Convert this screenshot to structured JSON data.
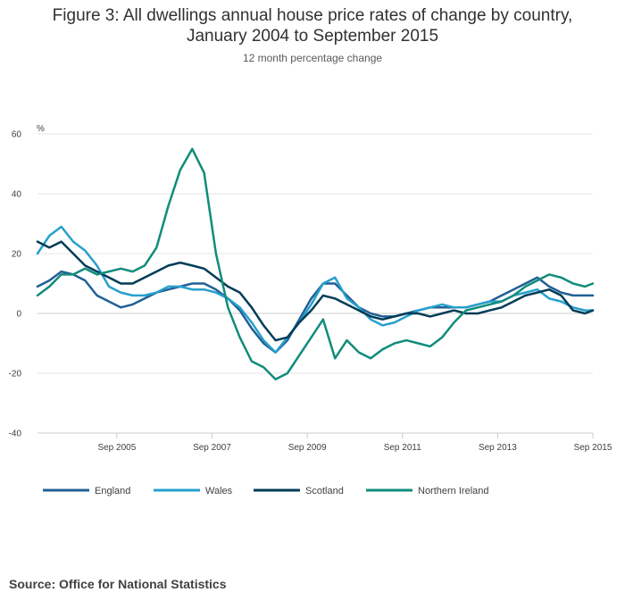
{
  "title_line1": "Figure 3: All dwellings annual house price rates of change by country,",
  "title_line2": "January 2004 to September 2015",
  "subtitle": "12 month percentage change",
  "source": "Source: Office for National Statistics",
  "chart_data": {
    "type": "line",
    "ylabel": "%",
    "ylim": [
      -40,
      60
    ],
    "yticks": [
      -40,
      -20,
      0,
      20,
      40,
      60
    ],
    "xlim": [
      "2004-01",
      "2015-09"
    ],
    "xtick_labels": [
      "Sep 2005",
      "Sep 2007",
      "Sep 2009",
      "Sep 2011",
      "Sep 2013",
      "Sep 2015"
    ],
    "xtick_dates": [
      "2005-09",
      "2007-09",
      "2009-09",
      "2011-09",
      "2013-09",
      "2015-09"
    ],
    "grid": "horizontal",
    "legend_position": "bottom",
    "series": [
      {
        "name": "England",
        "color": "#206095",
        "points": [
          [
            "2004-01",
            9
          ],
          [
            "2004-04",
            11
          ],
          [
            "2004-07",
            14
          ],
          [
            "2004-10",
            13
          ],
          [
            "2005-01",
            11
          ],
          [
            "2005-04",
            6
          ],
          [
            "2005-07",
            4
          ],
          [
            "2005-10",
            2
          ],
          [
            "2006-01",
            3
          ],
          [
            "2006-04",
            5
          ],
          [
            "2006-07",
            7
          ],
          [
            "2006-10",
            8
          ],
          [
            "2007-01",
            9
          ],
          [
            "2007-04",
            10
          ],
          [
            "2007-07",
            10
          ],
          [
            "2007-10",
            8
          ],
          [
            "2008-01",
            5
          ],
          [
            "2008-04",
            1
          ],
          [
            "2008-07",
            -5
          ],
          [
            "2008-10",
            -10
          ],
          [
            "2009-01",
            -13
          ],
          [
            "2009-04",
            -9
          ],
          [
            "2009-07",
            -2
          ],
          [
            "2009-10",
            5
          ],
          [
            "2010-01",
            10
          ],
          [
            "2010-04",
            10
          ],
          [
            "2010-07",
            6
          ],
          [
            "2010-10",
            2
          ],
          [
            "2011-01",
            0
          ],
          [
            "2011-04",
            -1
          ],
          [
            "2011-07",
            -1
          ],
          [
            "2011-10",
            0
          ],
          [
            "2012-01",
            1
          ],
          [
            "2012-04",
            2
          ],
          [
            "2012-07",
            2
          ],
          [
            "2012-10",
            2
          ],
          [
            "2013-01",
            2
          ],
          [
            "2013-04",
            3
          ],
          [
            "2013-07",
            4
          ],
          [
            "2013-10",
            6
          ],
          [
            "2014-01",
            8
          ],
          [
            "2014-04",
            10
          ],
          [
            "2014-07",
            12
          ],
          [
            "2014-10",
            9
          ],
          [
            "2015-01",
            7
          ],
          [
            "2015-04",
            6
          ],
          [
            "2015-07",
            6
          ],
          [
            "2015-09",
            6
          ]
        ]
      },
      {
        "name": "Wales",
        "color": "#27a0cc",
        "points": [
          [
            "2004-01",
            20
          ],
          [
            "2004-04",
            26
          ],
          [
            "2004-07",
            29
          ],
          [
            "2004-10",
            24
          ],
          [
            "2005-01",
            21
          ],
          [
            "2005-04",
            16
          ],
          [
            "2005-07",
            9
          ],
          [
            "2005-10",
            7
          ],
          [
            "2006-01",
            6
          ],
          [
            "2006-04",
            6
          ],
          [
            "2006-07",
            7
          ],
          [
            "2006-10",
            9
          ],
          [
            "2007-01",
            9
          ],
          [
            "2007-04",
            8
          ],
          [
            "2007-07",
            8
          ],
          [
            "2007-10",
            7
          ],
          [
            "2008-01",
            5
          ],
          [
            "2008-04",
            2
          ],
          [
            "2008-07",
            -3
          ],
          [
            "2008-10",
            -9
          ],
          [
            "2009-01",
            -13
          ],
          [
            "2009-04",
            -8
          ],
          [
            "2009-07",
            -3
          ],
          [
            "2009-10",
            3
          ],
          [
            "2010-01",
            10
          ],
          [
            "2010-04",
            12
          ],
          [
            "2010-07",
            5
          ],
          [
            "2010-10",
            2
          ],
          [
            "2011-01",
            -2
          ],
          [
            "2011-04",
            -4
          ],
          [
            "2011-07",
            -3
          ],
          [
            "2011-10",
            -1
          ],
          [
            "2012-01",
            1
          ],
          [
            "2012-04",
            2
          ],
          [
            "2012-07",
            3
          ],
          [
            "2012-10",
            2
          ],
          [
            "2013-01",
            2
          ],
          [
            "2013-04",
            3
          ],
          [
            "2013-07",
            4
          ],
          [
            "2013-10",
            4
          ],
          [
            "2014-01",
            6
          ],
          [
            "2014-04",
            7
          ],
          [
            "2014-07",
            8
          ],
          [
            "2014-10",
            5
          ],
          [
            "2015-01",
            4
          ],
          [
            "2015-04",
            2
          ],
          [
            "2015-07",
            1
          ],
          [
            "2015-09",
            1
          ]
        ]
      },
      {
        "name": "Scotland",
        "color": "#003c57",
        "points": [
          [
            "2004-01",
            24
          ],
          [
            "2004-04",
            22
          ],
          [
            "2004-07",
            24
          ],
          [
            "2004-10",
            20
          ],
          [
            "2005-01",
            16
          ],
          [
            "2005-04",
            14
          ],
          [
            "2005-07",
            12
          ],
          [
            "2005-10",
            10
          ],
          [
            "2006-01",
            10
          ],
          [
            "2006-04",
            12
          ],
          [
            "2006-07",
            14
          ],
          [
            "2006-10",
            16
          ],
          [
            "2007-01",
            17
          ],
          [
            "2007-04",
            16
          ],
          [
            "2007-07",
            15
          ],
          [
            "2007-10",
            12
          ],
          [
            "2008-01",
            9
          ],
          [
            "2008-04",
            7
          ],
          [
            "2008-07",
            2
          ],
          [
            "2008-10",
            -4
          ],
          [
            "2009-01",
            -9
          ],
          [
            "2009-04",
            -8
          ],
          [
            "2009-07",
            -3
          ],
          [
            "2009-10",
            1
          ],
          [
            "2010-01",
            6
          ],
          [
            "2010-04",
            5
          ],
          [
            "2010-07",
            3
          ],
          [
            "2010-10",
            1
          ],
          [
            "2011-01",
            -1
          ],
          [
            "2011-04",
            -2
          ],
          [
            "2011-07",
            -1
          ],
          [
            "2011-10",
            0
          ],
          [
            "2012-01",
            0
          ],
          [
            "2012-04",
            -1
          ],
          [
            "2012-07",
            0
          ],
          [
            "2012-10",
            1
          ],
          [
            "2013-01",
            0
          ],
          [
            "2013-04",
            0
          ],
          [
            "2013-07",
            1
          ],
          [
            "2013-10",
            2
          ],
          [
            "2014-01",
            4
          ],
          [
            "2014-04",
            6
          ],
          [
            "2014-07",
            7
          ],
          [
            "2014-10",
            8
          ],
          [
            "2015-01",
            6
          ],
          [
            "2015-04",
            1
          ],
          [
            "2015-07",
            0
          ],
          [
            "2015-09",
            1
          ]
        ]
      },
      {
        "name": "Northern Ireland",
        "color": "#118c7b",
        "points": [
          [
            "2004-01",
            6
          ],
          [
            "2004-04",
            9
          ],
          [
            "2004-07",
            13
          ],
          [
            "2004-10",
            13
          ],
          [
            "2005-01",
            15
          ],
          [
            "2005-04",
            13
          ],
          [
            "2005-07",
            14
          ],
          [
            "2005-10",
            15
          ],
          [
            "2006-01",
            14
          ],
          [
            "2006-04",
            16
          ],
          [
            "2006-07",
            22
          ],
          [
            "2006-10",
            36
          ],
          [
            "2007-01",
            48
          ],
          [
            "2007-04",
            55
          ],
          [
            "2007-07",
            47
          ],
          [
            "2007-10",
            20
          ],
          [
            "2008-01",
            2
          ],
          [
            "2008-04",
            -8
          ],
          [
            "2008-07",
            -16
          ],
          [
            "2008-10",
            -18
          ],
          [
            "2009-01",
            -22
          ],
          [
            "2009-04",
            -20
          ],
          [
            "2009-07",
            -14
          ],
          [
            "2009-10",
            -8
          ],
          [
            "2010-01",
            -2
          ],
          [
            "2010-04",
            -15
          ],
          [
            "2010-07",
            -9
          ],
          [
            "2010-10",
            -13
          ],
          [
            "2011-01",
            -15
          ],
          [
            "2011-04",
            -12
          ],
          [
            "2011-07",
            -10
          ],
          [
            "2011-10",
            -9
          ],
          [
            "2012-01",
            -10
          ],
          [
            "2012-04",
            -11
          ],
          [
            "2012-07",
            -8
          ],
          [
            "2012-10",
            -3
          ],
          [
            "2013-01",
            1
          ],
          [
            "2013-04",
            2
          ],
          [
            "2013-07",
            3
          ],
          [
            "2013-10",
            4
          ],
          [
            "2014-01",
            6
          ],
          [
            "2014-04",
            9
          ],
          [
            "2014-07",
            11
          ],
          [
            "2014-10",
            13
          ],
          [
            "2015-01",
            12
          ],
          [
            "2015-04",
            10
          ],
          [
            "2015-07",
            9
          ],
          [
            "2015-09",
            10
          ]
        ]
      }
    ]
  }
}
